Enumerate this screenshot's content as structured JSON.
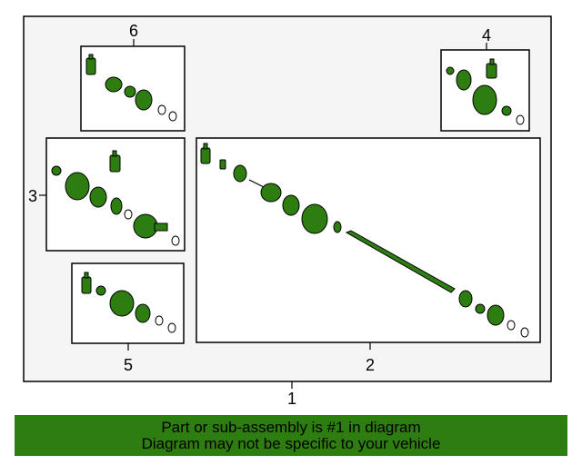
{
  "callouts": {
    "one": "1",
    "two": "2",
    "three": "3",
    "four": "4",
    "five": "5",
    "six": "6"
  },
  "footer": {
    "line1": "Part or sub-assembly is #1 in diagram",
    "line2": "Diagram may not be specific to your vehicle"
  },
  "colors": {
    "part_fill": "#2e7d10",
    "panel_bg": "#f5f5f5",
    "banner_bg": "#2e7d10"
  }
}
